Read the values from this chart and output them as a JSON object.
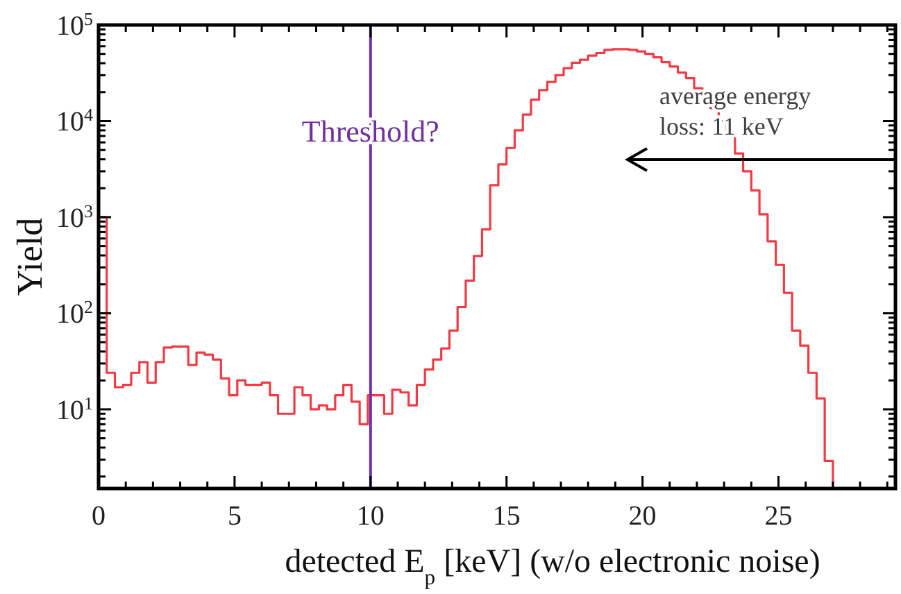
{
  "chart_data": {
    "type": "histogram",
    "xlabel": "detected E$_{p}$ [keV] (w/o electronic noise)",
    "ylabel": "Yield",
    "color": "#f23a44",
    "log": "y",
    "xlim": [
      0,
      29.3
    ],
    "ylim": [
      1.5,
      100000
    ],
    "xticks": [
      0,
      {
        "value": 1,
        "label": null
      },
      {
        "value": 2,
        "label": null
      },
      {
        "value": 3,
        "label": null
      },
      {
        "value": 4,
        "label": null
      },
      5,
      {
        "value": 6,
        "label": null
      },
      {
        "value": 7,
        "label": null
      },
      {
        "value": 8,
        "label": null
      },
      {
        "value": 9,
        "label": null
      },
      10,
      {
        "value": 11,
        "label": null
      },
      {
        "value": 12,
        "label": null
      },
      {
        "value": 13,
        "label": null
      },
      {
        "value": 14,
        "label": null
      },
      15,
      {
        "value": 16,
        "label": null
      },
      {
        "value": 17,
        "label": null
      },
      {
        "value": 18,
        "label": null
      },
      {
        "value": 19,
        "label": null
      },
      20,
      {
        "value": 21,
        "label": null
      },
      {
        "value": 22,
        "label": null
      },
      {
        "value": 23,
        "label": null
      },
      {
        "value": 24,
        "label": null
      },
      25,
      {
        "value": 26,
        "label": null
      },
      {
        "value": 27,
        "label": null
      },
      {
        "value": 28,
        "label": null
      },
      {
        "value": 29,
        "label": null
      }
    ],
    "yticks": [
      {
        "value": 2,
        "label": null
      },
      {
        "value": 3,
        "label": null
      },
      {
        "value": 4,
        "label": null
      },
      {
        "value": 5,
        "label": null
      },
      {
        "value": 6,
        "label": null
      },
      {
        "value": 7,
        "label": null
      },
      {
        "value": 8,
        "label": null
      },
      {
        "value": 9,
        "label": null
      },
      {
        "value": 10,
        "label": "10$^{1}$"
      },
      {
        "value": 20,
        "label": null
      },
      {
        "value": 30,
        "label": null
      },
      {
        "value": 40,
        "label": null
      },
      {
        "value": 50,
        "label": null
      },
      {
        "value": 60,
        "label": null
      },
      {
        "value": 70,
        "label": null
      },
      {
        "value": 80,
        "label": null
      },
      {
        "value": 90,
        "label": null
      },
      {
        "value": 100,
        "label": "10$^{2}$"
      },
      {
        "value": 200,
        "label": null
      },
      {
        "value": 300,
        "label": null
      },
      {
        "value": 400,
        "label": null
      },
      {
        "value": 500,
        "label": null
      },
      {
        "value": 600,
        "label": null
      },
      {
        "value": 700,
        "label": null
      },
      {
        "value": 800,
        "label": null
      },
      {
        "value": 900,
        "label": null
      },
      {
        "value": 1000,
        "label": "10$^{3}$"
      },
      {
        "value": 2000,
        "label": null
      },
      {
        "value": 3000,
        "label": null
      },
      {
        "value": 4000,
        "label": null
      },
      {
        "value": 5000,
        "label": null
      },
      {
        "value": 6000,
        "label": null
      },
      {
        "value": 7000,
        "label": null
      },
      {
        "value": 8000,
        "label": null
      },
      {
        "value": 9000,
        "label": null
      },
      {
        "value": 10000,
        "label": "10$^{4}$"
      },
      {
        "value": 20000,
        "label": null
      },
      {
        "value": 30000,
        "label": null
      },
      {
        "value": 40000,
        "label": null
      },
      {
        "value": 50000,
        "label": null
      },
      {
        "value": 60000,
        "label": null
      },
      {
        "value": 70000,
        "label": null
      },
      {
        "value": 80000,
        "label": null
      },
      {
        "value": 90000,
        "label": null
      },
      {
        "value": 100000,
        "label": "10$^{5}$"
      }
    ],
    "bins": [
      0,
      0.3,
      0.6,
      0.9,
      1.2,
      1.5,
      1.8,
      2.1,
      2.4,
      2.7,
      3,
      3.3,
      3.6,
      3.9,
      4.2,
      4.5,
      4.8,
      5.1,
      5.4,
      5.7,
      6,
      6.3,
      6.6,
      6.9,
      7.2,
      7.5,
      7.8,
      8.1,
      8.4,
      8.7,
      9,
      9.3,
      9.6,
      9.9,
      10.2,
      10.5,
      10.8,
      11.1,
      11.4,
      11.7,
      12,
      12.3,
      12.6,
      12.9,
      13.2,
      13.5,
      13.8,
      14.1,
      14.4,
      14.7,
      15,
      15.3,
      15.6,
      15.9,
      16.2,
      16.5,
      16.8,
      17.1,
      17.4,
      17.7,
      18,
      18.3,
      18.6,
      18.9,
      19.2,
      19.5,
      19.8,
      20.1,
      20.4,
      20.7,
      21,
      21.3,
      21.6,
      21.9,
      22.2,
      22.5,
      22.8,
      23.1,
      23.4,
      23.7,
      24,
      24.3,
      24.6,
      24.9,
      25.2,
      25.5,
      25.8,
      26.1,
      26.4,
      26.7,
      27
    ],
    "values": [
      1000,
      24,
      17,
      18,
      24,
      31,
      19,
      31,
      44,
      45,
      45,
      29,
      39,
      37,
      33,
      21,
      14,
      20,
      18,
      18,
      19,
      14,
      9,
      9,
      17,
      14,
      10,
      11,
      10,
      14,
      18,
      12,
      7,
      14,
      14,
      9,
      16,
      15,
      11,
      18,
      26,
      33,
      43,
      66,
      116,
      219,
      395,
      745,
      2150,
      3540,
      5250,
      8000,
      11700,
      16700,
      21000,
      25500,
      30000,
      35500,
      40500,
      43500,
      48000,
      51000,
      55000,
      56000,
      56000,
      55000,
      53000,
      50000,
      46000,
      41000,
      37000,
      32000,
      28000,
      22000,
      17800,
      13600,
      10000,
      7000,
      4600,
      3000,
      1900,
      1070,
      560,
      320,
      163,
      66,
      46,
      24,
      13,
      2.9
    ],
    "ref_lines": [
      {
        "axis": "x",
        "value": 10,
        "label": "Threshold?",
        "color": "#7030a0"
      }
    ],
    "annotations": [
      "average energy loss: 11 keV"
    ]
  }
}
